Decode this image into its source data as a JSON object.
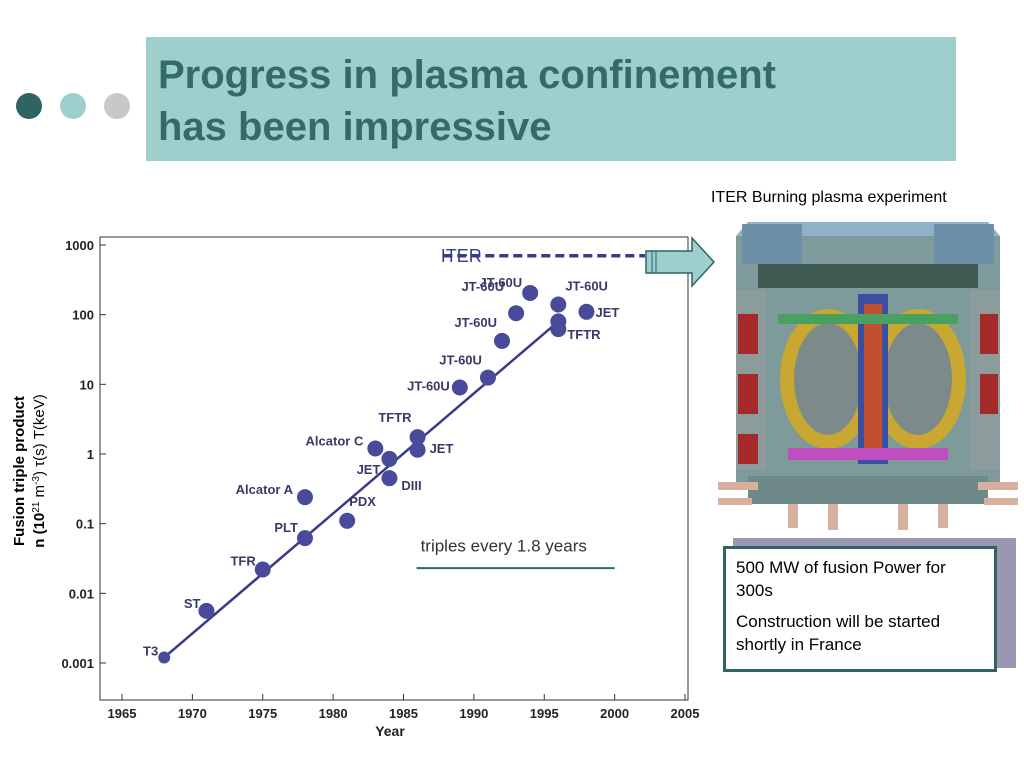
{
  "slide": {
    "title_line1": "Progress in plasma confinement",
    "title_line2": "has been impressive",
    "dot_colors": [
      "#2f6464",
      "#9ecfcc",
      "#c8c8c8"
    ],
    "iter_caption": "ITER Burning plasma experiment",
    "info_lines": [
      "500 MW of fusion Power for 300s",
      "Construction will be started shortly in France"
    ]
  },
  "chart_data": {
    "type": "scatter",
    "ylabel_line1": "Fusion triple product",
    "ylabel_line2_parts": [
      "n (10",
      "21",
      " m",
      "-3",
      ") ",
      "τ",
      "(s) T(keV)"
    ],
    "xlabel": "Year",
    "x_ticks": [
      1965,
      1970,
      1975,
      1980,
      1985,
      1990,
      1995,
      2000,
      2005
    ],
    "y_ticks": [
      0.001,
      0.01,
      0.1,
      1,
      10,
      100,
      1000
    ],
    "y_tick_labels": [
      "0.001",
      "0.01",
      "0.1",
      "1",
      "10",
      "100",
      "1000"
    ],
    "xlim": [
      1963,
      2005
    ],
    "ylim": [
      0.0006,
      1200
    ],
    "y_scale": "log",
    "points": [
      {
        "label": "T3",
        "x": 1968,
        "y": 0.0012
      },
      {
        "label": "ST",
        "x": 1971,
        "y": 0.0056
      },
      {
        "label": "TFR",
        "x": 1975,
        "y": 0.022
      },
      {
        "label": "PLT",
        "x": 1978,
        "y": 0.062
      },
      {
        "label": "Alcator A",
        "x": 1978,
        "y": 0.24
      },
      {
        "label": "PDX",
        "x": 1981,
        "y": 0.11
      },
      {
        "label": "Alcator C",
        "x": 1983,
        "y": 1.2
      },
      {
        "label": "JET",
        "x": 1984,
        "y": 0.85
      },
      {
        "label": "DIII",
        "x": 1984,
        "y": 0.45
      },
      {
        "label": "TFTR",
        "x": 1986,
        "y": 1.75
      },
      {
        "label": "JET",
        "x": 1986,
        "y": 1.15
      },
      {
        "label": "JT-60U",
        "x": 1989,
        "y": 9
      },
      {
        "label": "JT-60U",
        "x": 1991,
        "y": 12.5
      },
      {
        "label": "JT-60U",
        "x": 1992,
        "y": 42
      },
      {
        "label": "JT-60U",
        "x": 1993,
        "y": 105
      },
      {
        "label": "JT-60U",
        "x": 1994,
        "y": 205
      },
      {
        "label": "JT-60U",
        "x": 1996,
        "y": 140
      },
      {
        "label": "JET",
        "x": 1998,
        "y": 110
      },
      {
        "label": "TFTR",
        "x": 1996,
        "y": 62
      },
      {
        "label": "",
        "x": 1996,
        "y": 80
      }
    ],
    "trend_line": {
      "x": [
        1968,
        1996
      ],
      "y": [
        0.0012,
        80
      ]
    },
    "iter_label": "ITER",
    "iter_level_y": 700,
    "annotation": "triples every 1.8 years"
  }
}
